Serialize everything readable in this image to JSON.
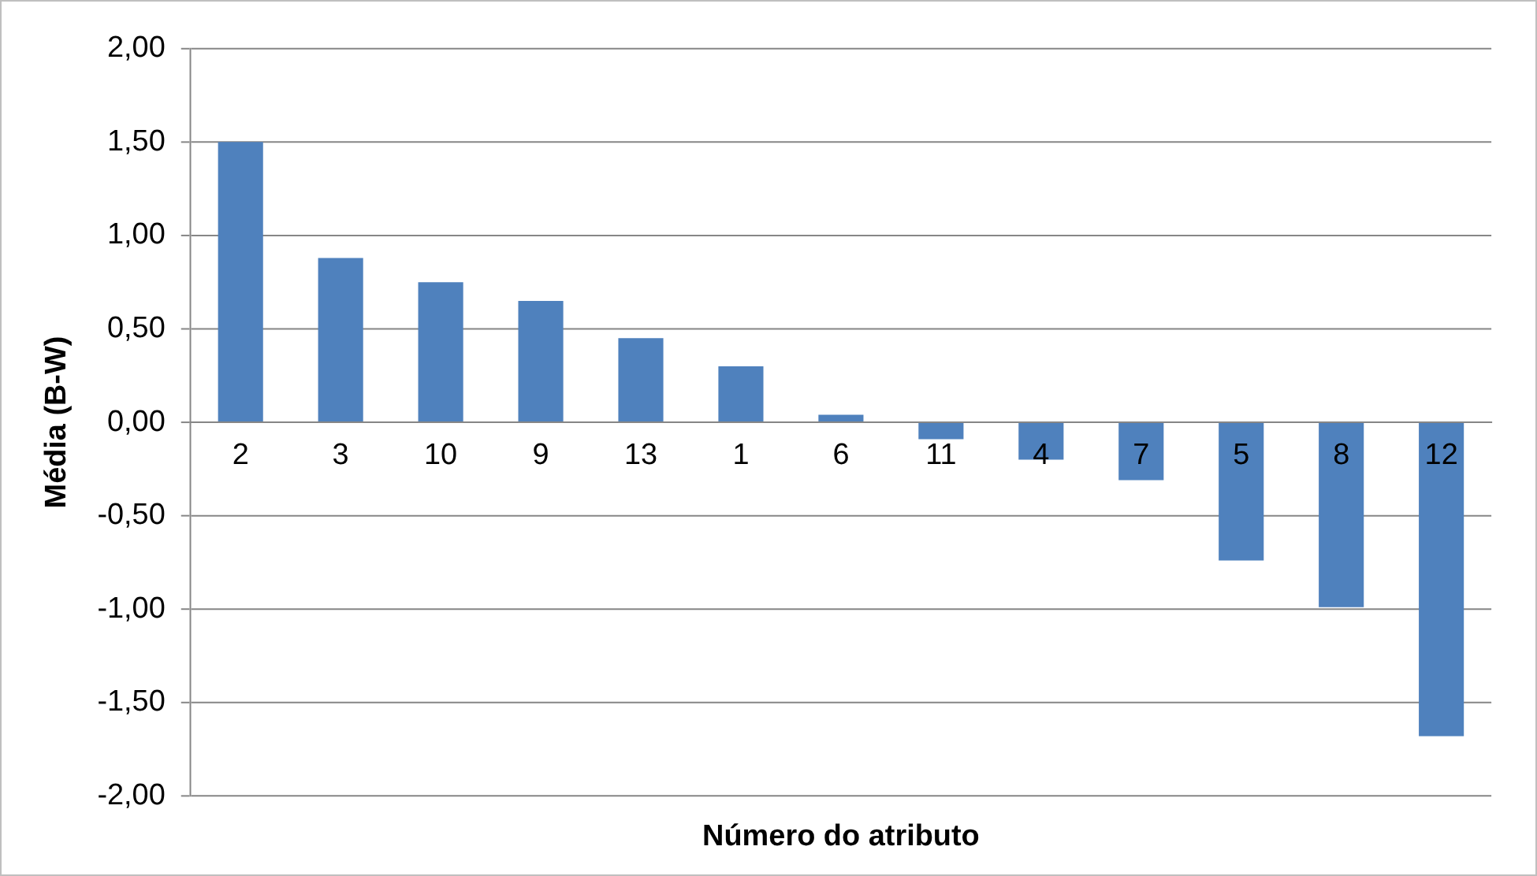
{
  "chart_data": {
    "type": "bar",
    "xlabel": "Número do atributo",
    "ylabel": "Média (B-W)",
    "categories": [
      "2",
      "3",
      "10",
      "9",
      "13",
      "1",
      "6",
      "11",
      "4",
      "7",
      "5",
      "8",
      "12"
    ],
    "values": [
      1.5,
      0.88,
      0.75,
      0.65,
      0.45,
      0.3,
      0.04,
      -0.09,
      -0.2,
      -0.31,
      -0.74,
      -0.99,
      -1.68
    ],
    "color": "#4f81bd",
    "ylim": [
      -2,
      2
    ],
    "yticks": [
      {
        "value": -2,
        "label": "-2,00"
      },
      {
        "value": -1.5,
        "label": "-1,50"
      },
      {
        "value": -1,
        "label": "-1,00"
      },
      {
        "value": -0.5,
        "label": "-0,50"
      },
      {
        "value": 0,
        "label": "0,00"
      },
      {
        "value": 0.5,
        "label": "0,50"
      },
      {
        "value": 1,
        "label": "1,00"
      },
      {
        "value": 1.5,
        "label": "1,50"
      },
      {
        "value": 2,
        "label": "2,00"
      }
    ],
    "grid": "y",
    "legend": false
  }
}
